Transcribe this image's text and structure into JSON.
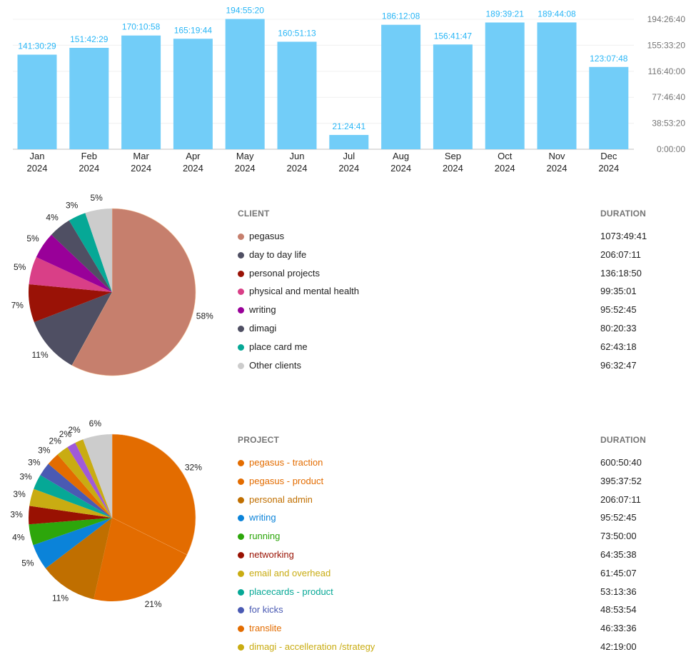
{
  "chart_data": [
    {
      "type": "bar",
      "categories": [
        [
          "Jan",
          "2024"
        ],
        [
          "Feb",
          "2024"
        ],
        [
          "Mar",
          "2024"
        ],
        [
          "Apr",
          "2024"
        ],
        [
          "May",
          "2024"
        ],
        [
          "Jun",
          "2024"
        ],
        [
          "Jul",
          "2024"
        ],
        [
          "Aug",
          "2024"
        ],
        [
          "Sep",
          "2024"
        ],
        [
          "Oct",
          "2024"
        ],
        [
          "Nov",
          "2024"
        ],
        [
          "Dec",
          "2024"
        ]
      ],
      "values": [
        "141:30:29",
        "151:42:29",
        "170:10:58",
        "165:19:44",
        "194:55:20",
        "160:51:13",
        "21:24:41",
        "186:12:08",
        "156:41:47",
        "189:39:21",
        "189:44:08",
        "123:07:48"
      ],
      "y_ticks": [
        "0:00:00",
        "38:53:20",
        "77:46:40",
        "116:40:00",
        "155:33:20",
        "194:26:40"
      ],
      "ylim": [
        "0:00:00",
        "194:26:40"
      ],
      "y_axis_side": "right",
      "grid": true,
      "bar_color": "#72cdf8",
      "label_color": "#29b6f6"
    },
    {
      "type": "pie",
      "header": {
        "name": "CLIENT",
        "value": "DURATION"
      },
      "slices": [
        {
          "name": "pegasus",
          "duration": "1073:49:41",
          "pct": "58%",
          "color": "#c67f6d"
        },
        {
          "name": "day to day life",
          "duration": "206:07:11",
          "pct": "11%",
          "color": "#4f4f63"
        },
        {
          "name": "personal projects",
          "duration": "136:18:50",
          "pct": "7%",
          "color": "#9a1206"
        },
        {
          "name": "physical and mental health",
          "duration": "99:35:01",
          "pct": "5%",
          "color": "#d93f87"
        },
        {
          "name": "writing",
          "duration": "95:52:45",
          "pct": "5%",
          "color": "#990099"
        },
        {
          "name": "dimagi",
          "duration": "80:20:33",
          "pct": "4%",
          "color": "#4f4f63"
        },
        {
          "name": "place card me",
          "duration": "62:43:18",
          "pct": "3%",
          "color": "#06a896"
        },
        {
          "name": "Other clients",
          "duration": "96:32:47",
          "pct": "5%",
          "color": "#cccccc"
        }
      ]
    },
    {
      "type": "pie",
      "header": {
        "name": "PROJECT",
        "value": "DURATION"
      },
      "slices": [
        {
          "name": "pegasus - traction",
          "duration": "600:50:40",
          "pct": "32%",
          "value": 32,
          "color": "#e36c00"
        },
        {
          "name": "pegasus - product",
          "duration": "395:37:52",
          "pct": "21%",
          "value": 21,
          "color": "#e36c00"
        },
        {
          "name": "personal admin",
          "duration": "206:07:11",
          "pct": "11%",
          "value": 11,
          "color": "#c06f00"
        },
        {
          "name": "writing",
          "duration": "95:52:45",
          "pct": "5%",
          "value": 5,
          "color": "#0b83d9"
        },
        {
          "name": "running",
          "duration": "73:50:00",
          "pct": "4%",
          "value": 4,
          "color": "#2da60b"
        },
        {
          "name": "networking",
          "duration": "64:35:38",
          "pct": "3%",
          "value": 3.5,
          "color": "#991102"
        },
        {
          "name": "email and overhead",
          "duration": "61:45:07",
          "pct": "3%",
          "value": 3.3,
          "color": "#c9ac12"
        },
        {
          "name": "placecards - product",
          "duration": "53:13:36",
          "pct": "3%",
          "value": 2.9,
          "color": "#06a896"
        },
        {
          "name": "for kicks",
          "duration": "48:53:54",
          "pct": "3%",
          "value": 2.6,
          "color": "#4a5ab3"
        },
        {
          "name": "translite",
          "duration": "46:33:36",
          "pct": "3%",
          "value": 2.5,
          "color": "#e36c00"
        },
        {
          "name": "dimagi - accelleration /strategy",
          "duration": "42:19:00",
          "pct": "2%",
          "value": 2.3,
          "color": "#c9ac12"
        },
        {
          "pct": "2%",
          "value": 1.7,
          "color": "#a05ad8"
        },
        {
          "pct": "2%",
          "value": 1.6,
          "color": "#c9ac12"
        },
        {
          "pct": "6%",
          "value": 5.6,
          "color": "#cccccc"
        }
      ]
    }
  ]
}
